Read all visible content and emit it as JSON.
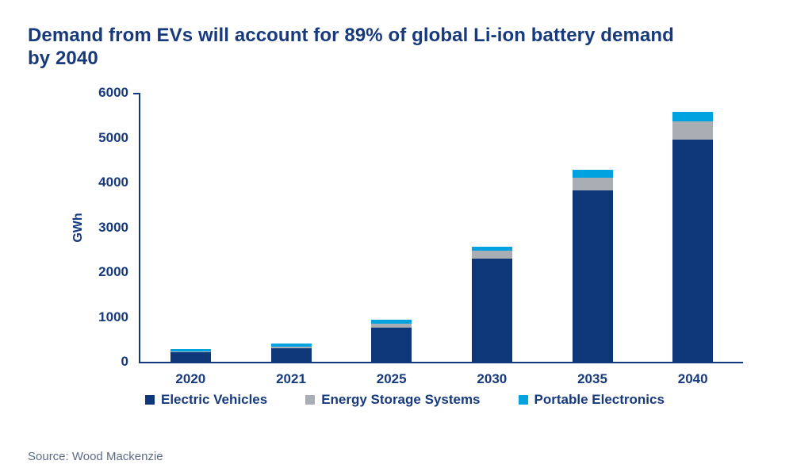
{
  "page": {
    "source": "Source: Wood Mackenzie"
  },
  "colors": {
    "title_text": "#163a7d",
    "axis_text": "#163a7d",
    "axis_line": "#14387e",
    "source_text": "#5c6b87"
  },
  "chart_data": {
    "type": "bar",
    "stacked": true,
    "title": "Demand from EVs will account for 89% of global Li-ion battery demand by 2040",
    "categories": [
      "2020",
      "2021",
      "2025",
      "2030",
      "2035",
      "2040"
    ],
    "series": [
      {
        "name": "Electric Vehicles",
        "color": "#0d3778",
        "values": [
          210,
          305,
          770,
          2300,
          3820,
          4950
        ]
      },
      {
        "name": "Energy Storage Systems",
        "color": "#a8aeb4",
        "values": [
          25,
          25,
          85,
          175,
          280,
          420
        ]
      },
      {
        "name": "Portable Electronics",
        "color": "#00a3e0",
        "values": [
          45,
          85,
          85,
          100,
          175,
          210
        ]
      }
    ],
    "totals": [
      280,
      415,
      940,
      2575,
      4275,
      5580
    ],
    "xlabel": "",
    "ylabel": "GWh",
    "ylim": [
      0,
      6000
    ],
    "ytick_step": 1000,
    "grid": false,
    "legend_position": "bottom"
  }
}
